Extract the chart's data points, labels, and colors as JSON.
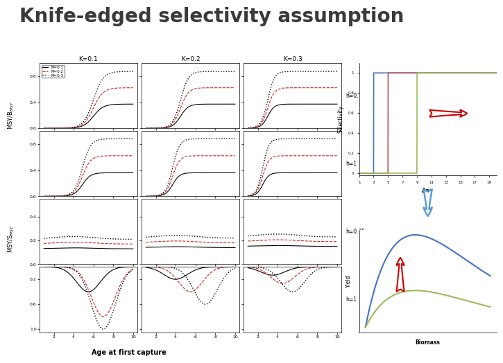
{
  "title": "Knife-edged selectivity assumption",
  "title_color": "#3a3a3a",
  "title_fontsize": 20,
  "title_fontweight": "bold",
  "bg_color": "#ffffff",
  "K_values": [
    0.1,
    0.2,
    0.3
  ],
  "M_values": [
    0.1,
    0.2,
    0.3
  ],
  "M_colors": [
    "#000000",
    "#cc2222",
    "#000000"
  ],
  "M_linestyles": [
    "-",
    "--",
    ":"
  ],
  "M_linewidths": [
    0.8,
    0.8,
    1.0
  ],
  "selectivity_knife_ages": [
    3,
    5,
    9
  ],
  "sel_colors": [
    "#4472C4",
    "#C0504D",
    "#9BBB59"
  ],
  "sel_xlabel": "Age",
  "sel_ylabel": "Selectivity",
  "sel_xticks": [
    1,
    3,
    5,
    7,
    9,
    11,
    13,
    15,
    17,
    19
  ],
  "yield_xlabel": "Biomass",
  "yield_ylabel": "Yield",
  "yield_color_blue": "#4472C4",
  "yield_color_green": "#9BBB59",
  "red_arrow_color": "#CC0000",
  "blue_arrow_color": "#5B9BD5",
  "h_labels_top": [
    "h=0.75",
    "h=1"
  ],
  "h_labels_bot": [
    "h=0.75",
    "h=1"
  ]
}
